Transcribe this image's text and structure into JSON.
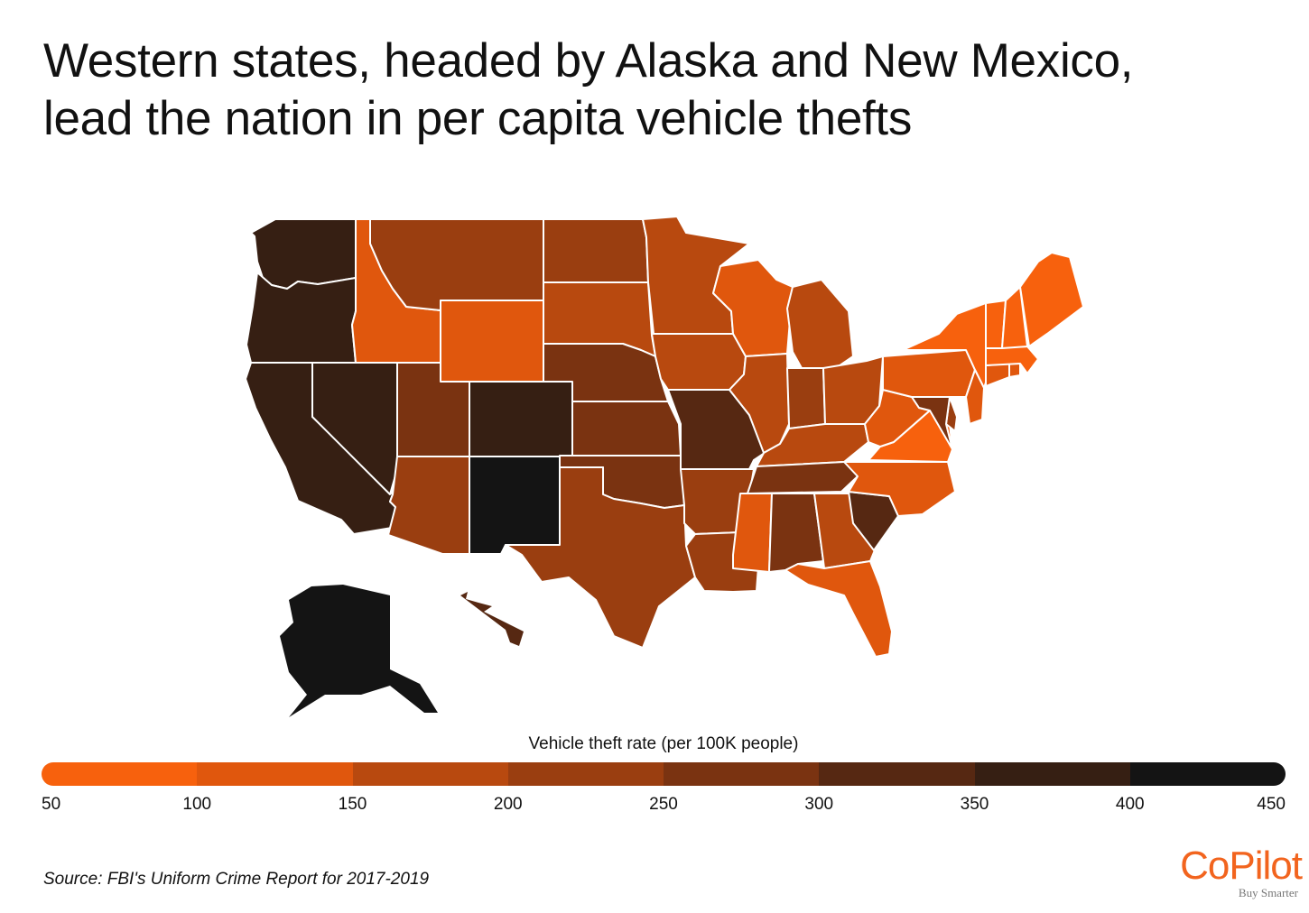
{
  "title": {
    "line1": "Western states, headed by Alaska and New Mexico,",
    "line2": "lead the nation in per capita vehicle thefts"
  },
  "legend": {
    "title": "Vehicle theft rate (per 100K people)",
    "ticks": [
      "50",
      "100",
      "150",
      "200",
      "250",
      "300",
      "350",
      "400",
      "450"
    ],
    "colors": [
      "#f7610d",
      "#e0570d",
      "#b8490f",
      "#9a3e10",
      "#7a3311",
      "#562812",
      "#361f13",
      "#141414"
    ]
  },
  "source": "Source: FBI's Uniform Crime Report for 2017-2019",
  "brand": {
    "name": "CoPilot",
    "tagline": "Buy Smarter"
  },
  "map_data": {
    "type": "choropleth",
    "region": "United States",
    "bin_colors": [
      "#f7610d",
      "#e0570d",
      "#b8490f",
      "#9a3e10",
      "#7a3311",
      "#562812",
      "#361f13",
      "#141414"
    ],
    "states": {
      "WA": 6,
      "OR": 6,
      "CA": 6,
      "NV": 6,
      "ID": 1,
      "MT": 3,
      "WY": 1,
      "UT": 4,
      "AZ": 3,
      "CO": 6,
      "NM": 7,
      "ND": 3,
      "SD": 2,
      "NE": 4,
      "KS": 4,
      "OK": 4,
      "TX": 3,
      "MN": 2,
      "IA": 2,
      "MO": 5,
      "AR": 3,
      "LA": 3,
      "WI": 1,
      "IL": 2,
      "MI": 2,
      "IN": 3,
      "OH": 2,
      "KY": 2,
      "TN": 4,
      "MS": 1,
      "AL": 4,
      "GA": 2,
      "FL": 1,
      "SC": 5,
      "NC": 1,
      "VA": 0,
      "WV": 1,
      "PA": 1,
      "NY": 0,
      "VT": 0,
      "NH": 0,
      "ME": 0,
      "MA": 0,
      "RI": 1,
      "CT": 1,
      "NJ": 1,
      "DE": 3,
      "MD": 4,
      "AK": 7,
      "HI": 5
    }
  }
}
